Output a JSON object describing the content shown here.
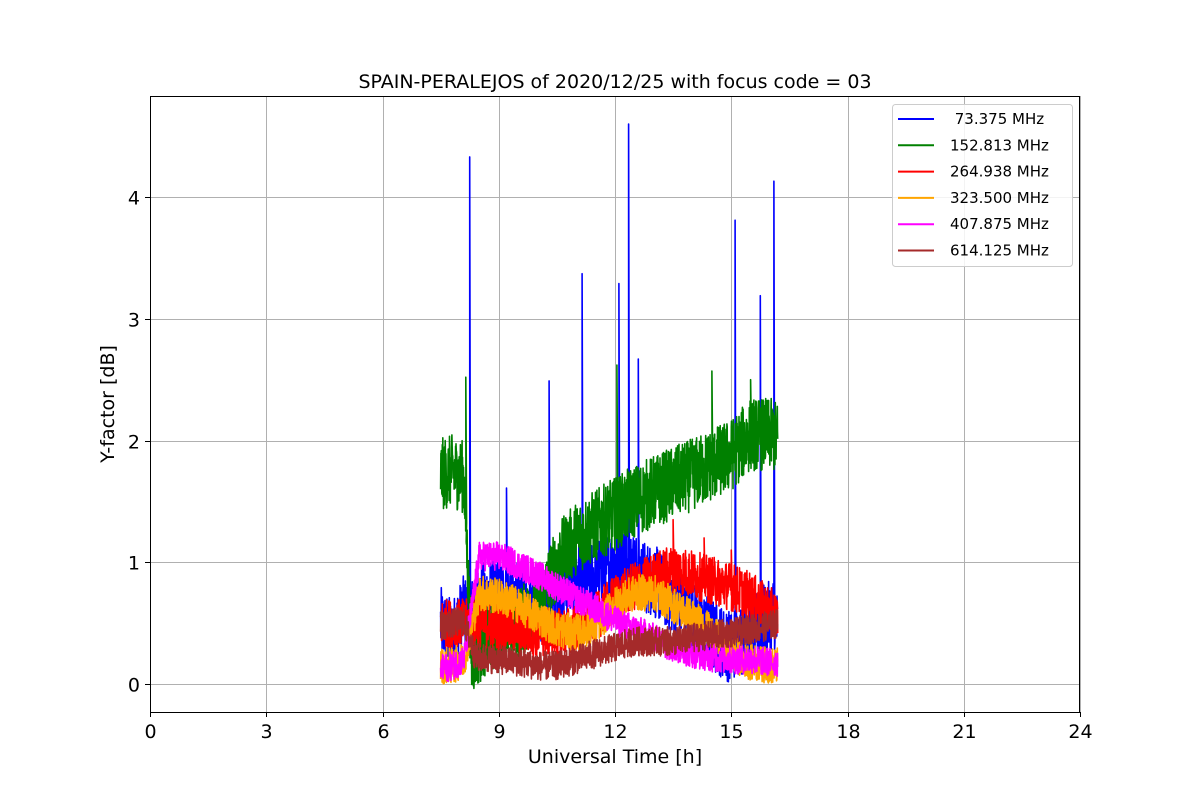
{
  "chart_data": {
    "type": "line",
    "title": "SPAIN-PERALEJOS of 2020/12/25 with focus code = 03",
    "xlabel": "Universal Time [h]",
    "ylabel": "Y-factor [dB]",
    "xlim": [
      0,
      24
    ],
    "ylim": [
      -0.23,
      4.83
    ],
    "x_ticks": [
      0,
      3,
      6,
      9,
      12,
      15,
      18,
      21,
      24
    ],
    "y_ticks": [
      0,
      1,
      2,
      3,
      4
    ],
    "grid": true,
    "legend_position": "top-right",
    "series": [
      {
        "name": " 73.375 MHz",
        "color": "#0000ff",
        "x": [
          7.5,
          7.8,
          8.1,
          8.25,
          8.5,
          9.0,
          9.5,
          10.0,
          10.3,
          10.6,
          11.0,
          11.15,
          11.5,
          12.0,
          12.1,
          12.35,
          12.6,
          13.0,
          13.5,
          14.0,
          14.5,
          15.0,
          15.1,
          15.5,
          15.75,
          16.0,
          16.1,
          16.2
        ],
        "y": [
          0.5,
          0.4,
          0.6,
          0.55,
          0.7,
          0.75,
          0.7,
          0.65,
          0.6,
          0.8,
          0.9,
          0.85,
          0.9,
          1.0,
          1.05,
          1.0,
          0.9,
          0.85,
          0.7,
          0.55,
          0.4,
          0.3,
          0.35,
          0.4,
          0.5,
          0.55,
          0.6,
          0.45
        ],
        "spikes": [
          [
            8.25,
            4.33
          ],
          [
            9.2,
            1.61
          ],
          [
            10.3,
            2.49
          ],
          [
            11.15,
            3.37
          ],
          [
            12.1,
            3.29
          ],
          [
            12.35,
            4.6
          ],
          [
            12.6,
            2.67
          ],
          [
            15.1,
            3.81
          ],
          [
            15.75,
            3.19
          ],
          [
            16.1,
            4.13
          ]
        ],
        "noise": 0.3
      },
      {
        "name": "152.813 MHz",
        "color": "#008000",
        "x": [
          7.5,
          7.8,
          8.1,
          8.3,
          8.6,
          9.0,
          9.5,
          10.0,
          10.3,
          10.6,
          11.0,
          11.5,
          12.0,
          12.5,
          13.0,
          13.5,
          14.0,
          14.5,
          15.0,
          15.5,
          16.0,
          16.2
        ],
        "y": [
          1.72,
          1.75,
          1.7,
          0.2,
          0.35,
          0.45,
          0.5,
          0.6,
          0.85,
          1.05,
          1.2,
          1.3,
          1.4,
          1.5,
          1.58,
          1.65,
          1.72,
          1.8,
          1.88,
          2.05,
          2.05,
          2.02
        ],
        "spikes": [
          [
            8.15,
            2.52
          ],
          [
            12.05,
            2.62
          ],
          [
            14.5,
            2.57
          ],
          [
            15.5,
            2.5
          ]
        ],
        "noise": 0.3
      },
      {
        "name": "264.938 MHz",
        "color": "#ff0000",
        "x": [
          7.5,
          8.0,
          8.5,
          9.0,
          9.5,
          10.0,
          10.5,
          11.0,
          11.5,
          12.0,
          12.5,
          13.0,
          13.5,
          14.0,
          14.5,
          15.0,
          15.5,
          16.0,
          16.2
        ],
        "y": [
          0.5,
          0.5,
          0.5,
          0.48,
          0.45,
          0.42,
          0.42,
          0.45,
          0.55,
          0.7,
          0.8,
          0.88,
          0.95,
          0.9,
          0.85,
          0.8,
          0.72,
          0.6,
          0.55
        ],
        "spikes": [
          [
            13.5,
            1.35
          ],
          [
            14.3,
            1.2
          ],
          [
            15.0,
            1.1
          ]
        ],
        "noise": 0.2
      },
      {
        "name": "323.500 MHz",
        "color": "#ffa500",
        "x": [
          7.5,
          7.8,
          8.1,
          8.5,
          9.0,
          9.5,
          10.0,
          10.5,
          11.0,
          11.5,
          12.0,
          12.5,
          13.0,
          13.5,
          14.0,
          14.5,
          15.0,
          15.5,
          16.0,
          16.2
        ],
        "y": [
          0.15,
          0.15,
          0.2,
          0.75,
          0.72,
          0.65,
          0.55,
          0.45,
          0.42,
          0.48,
          0.65,
          0.75,
          0.75,
          0.65,
          0.55,
          0.42,
          0.25,
          0.18,
          0.15,
          0.15
        ],
        "spikes": [],
        "noise": 0.15
      },
      {
        "name": "407.875 MHz",
        "color": "#ff00ff",
        "x": [
          7.5,
          7.8,
          8.1,
          8.5,
          9.0,
          9.5,
          10.0,
          10.5,
          11.0,
          11.5,
          12.0,
          12.5,
          13.0,
          13.5,
          14.0,
          14.5,
          15.0,
          15.5,
          16.0,
          16.2
        ],
        "y": [
          0.12,
          0.15,
          0.2,
          1.05,
          1.05,
          0.98,
          0.9,
          0.8,
          0.7,
          0.62,
          0.52,
          0.45,
          0.38,
          0.3,
          0.25,
          0.22,
          0.2,
          0.2,
          0.18,
          0.18
        ],
        "spikes": [],
        "noise": 0.12
      },
      {
        "name": "614.125 MHz",
        "color": "#a52a2a",
        "x": [
          7.5,
          7.8,
          8.1,
          8.4,
          9.0,
          9.5,
          10.0,
          10.5,
          11.0,
          11.5,
          12.0,
          12.5,
          13.0,
          13.5,
          14.0,
          14.5,
          15.0,
          15.5,
          16.0,
          16.2
        ],
        "y": [
          0.48,
          0.5,
          0.52,
          0.22,
          0.2,
          0.18,
          0.15,
          0.15,
          0.2,
          0.25,
          0.3,
          0.35,
          0.35,
          0.35,
          0.38,
          0.4,
          0.42,
          0.45,
          0.48,
          0.5
        ],
        "spikes": [],
        "noise": 0.12
      }
    ]
  }
}
